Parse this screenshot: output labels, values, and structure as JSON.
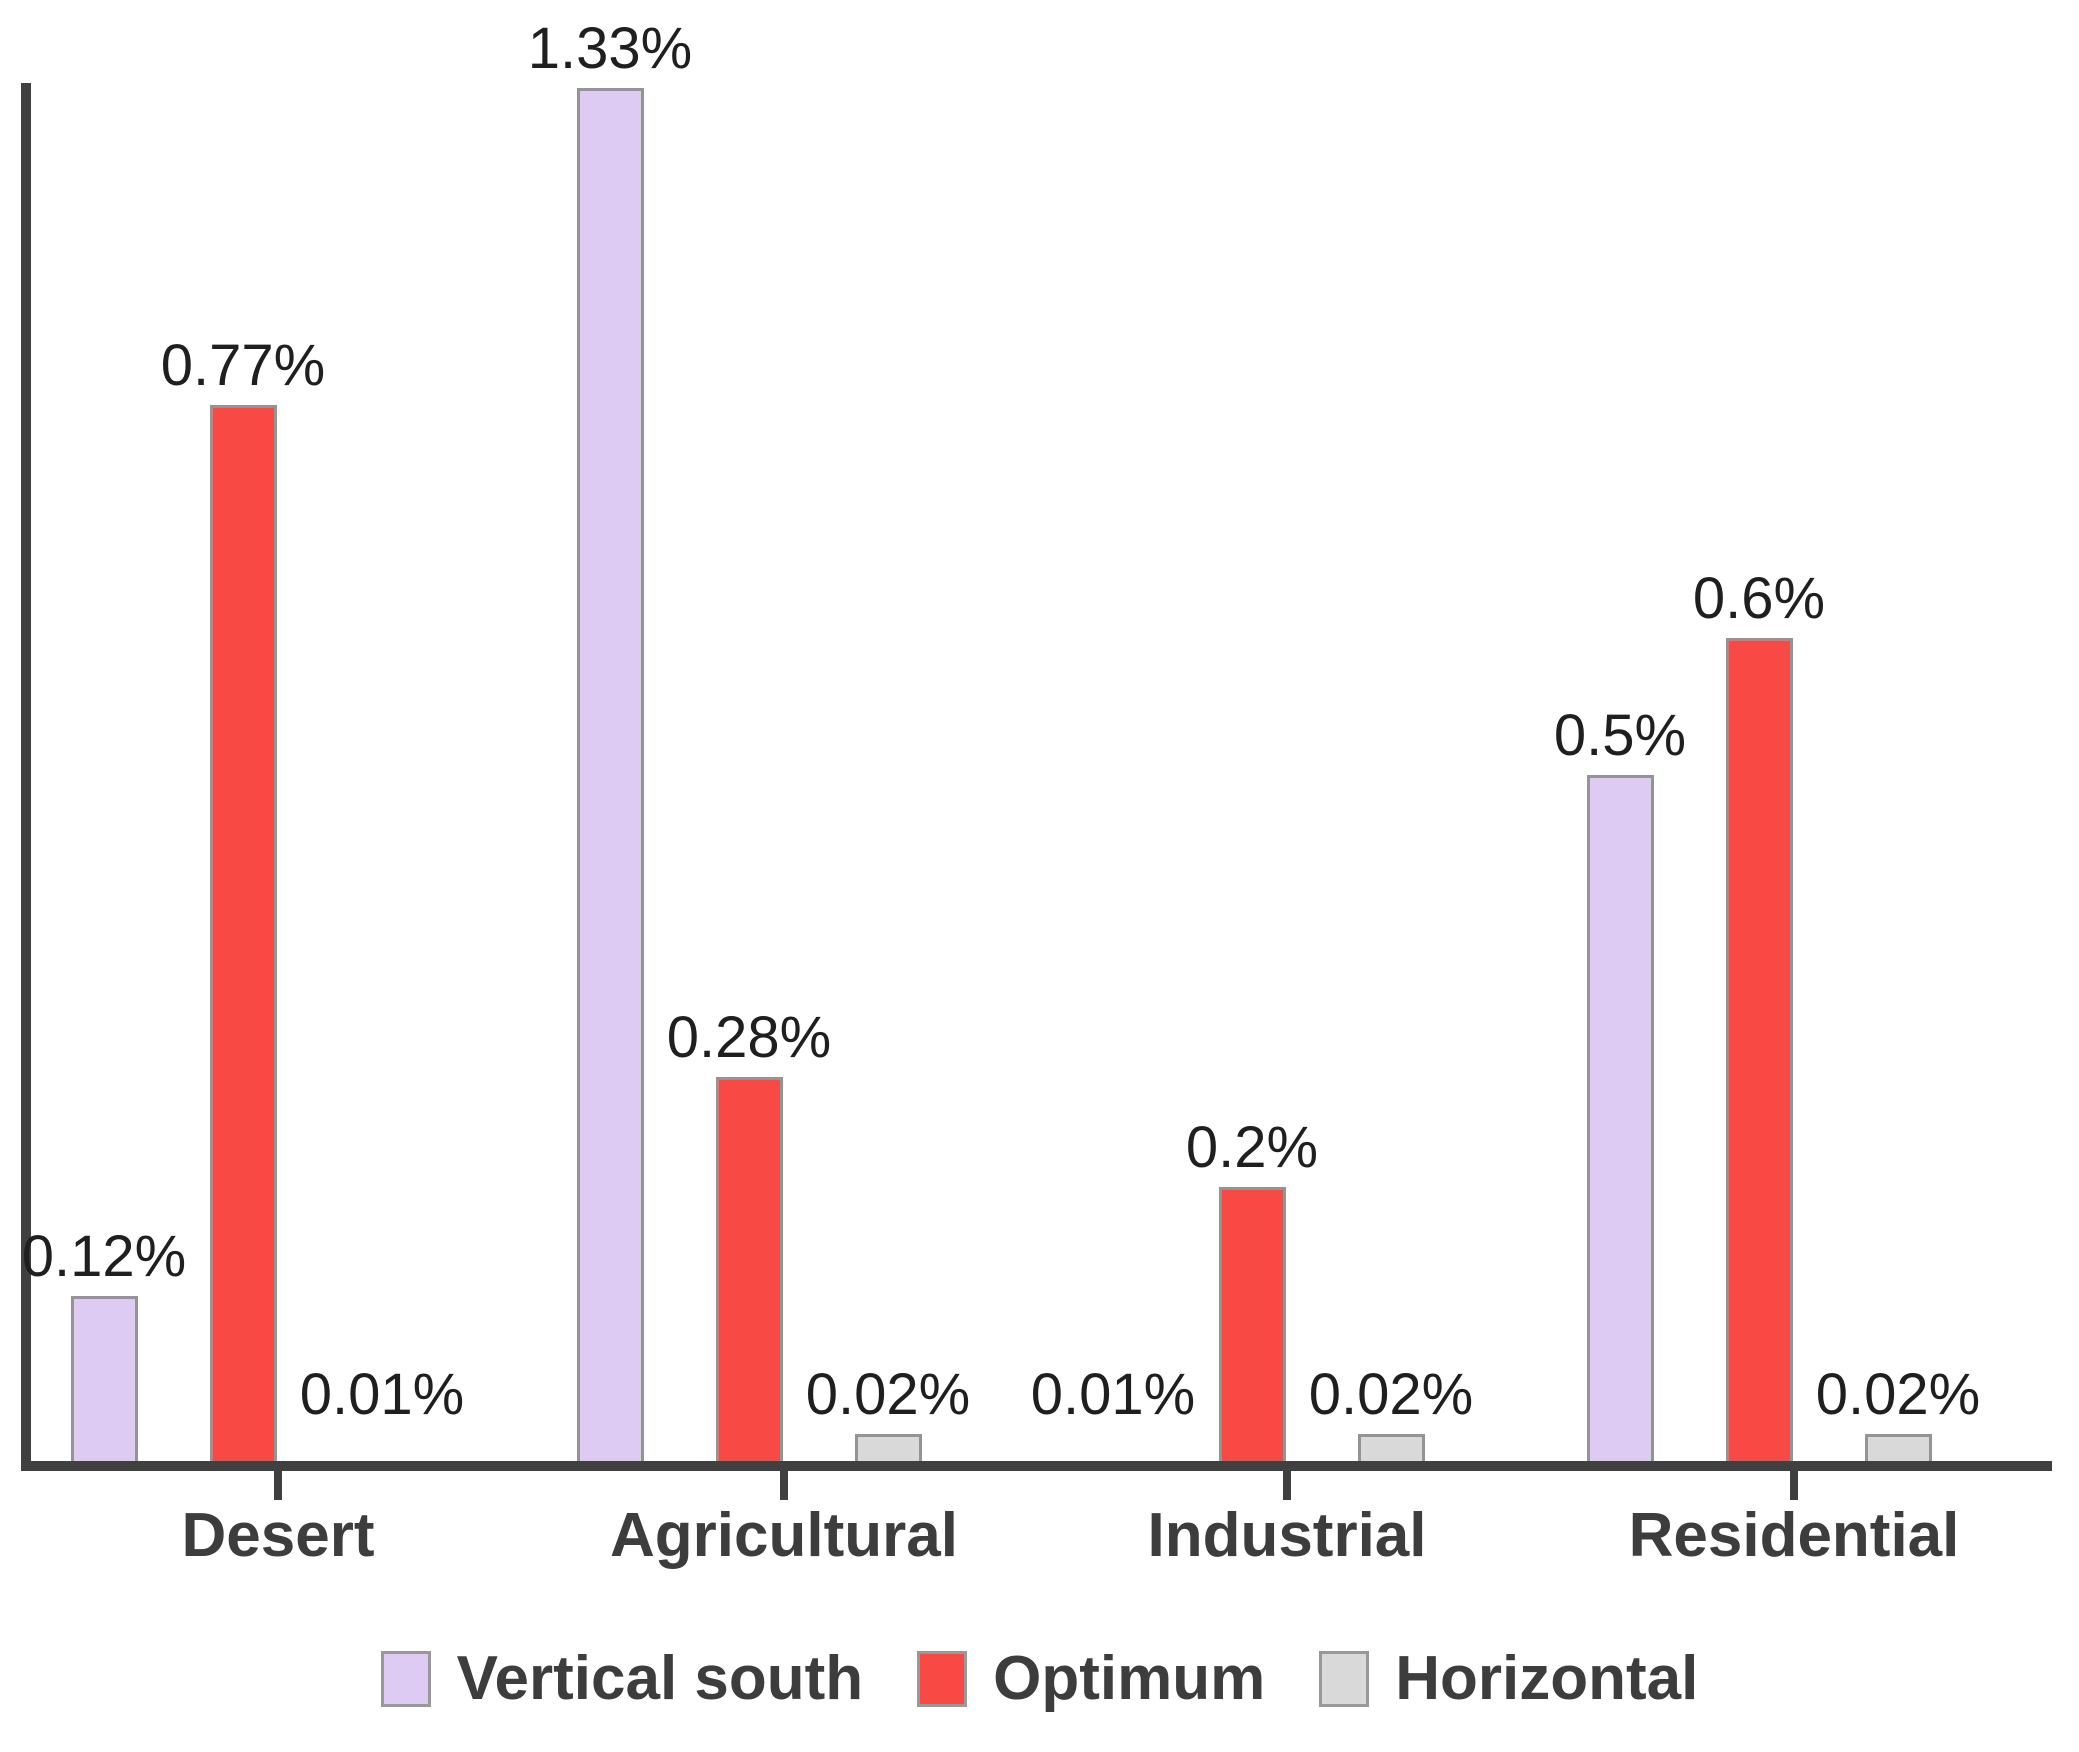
{
  "chart_data": {
    "type": "bar",
    "title": "",
    "xlabel": "",
    "ylabel": "",
    "grid": false,
    "legend_position": "bottom",
    "value_suffix": "%",
    "ylim": [
      0,
      1.0
    ],
    "categories": [
      "Desert",
      "Agricultural",
      "Industrial",
      "Residential"
    ],
    "series": [
      {
        "name": "Vertical south",
        "color": "#decbf4",
        "values": [
          0.12,
          1.33,
          0.01,
          0.5
        ],
        "labels": [
          "0.12%",
          "1.33%",
          "0.01%",
          "0.5%"
        ]
      },
      {
        "name": "Optimum",
        "color": "#f94945",
        "values": [
          0.77,
          0.28,
          0.2,
          0.6
        ],
        "labels": [
          "0.77%",
          "0.28%",
          "0.2%",
          "0.6%"
        ]
      },
      {
        "name": "Horizontal",
        "color": "#d9d9d9",
        "values": [
          0.01,
          0.02,
          0.02,
          0.02
        ],
        "labels": [
          "0.01%",
          "0.02%",
          "0.02%",
          "0.02%"
        ]
      }
    ]
  },
  "colors": {
    "axis": "#404040",
    "value_label_text": "#1f1f1f",
    "category_label_text": "#3d3d3d",
    "bar_border": "#949494"
  }
}
